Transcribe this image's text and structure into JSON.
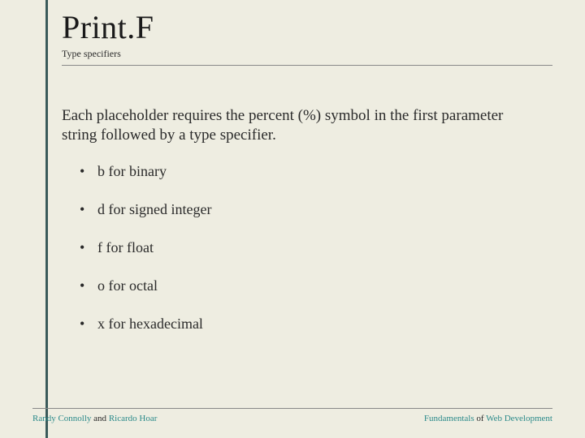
{
  "colors": {
    "background": "#eeede1",
    "accent_bar": "#3a5a5a",
    "text": "#2a2a2a",
    "rule": "#888888",
    "teal_link": "#2b8a8a"
  },
  "typography": {
    "title_fontsize": 40,
    "subtitle_fontsize": 12,
    "body_fontsize": 19,
    "bullet_fontsize": 18,
    "footer_fontsize": 11,
    "font_family": "Georgia, serif"
  },
  "title": "Print.F",
  "subtitle": "Type specifiers",
  "intro": "Each placeholder requires the percent (%) symbol in the first parameter string followed by a type specifier.",
  "bullets": [
    "b for binary",
    "d for signed integer",
    "f for float",
    "o for octal",
    "x for hexadecimal"
  ],
  "footer": {
    "left_name1": "Randy Connolly",
    "left_join": " and ",
    "left_name2": "Ricardo Hoar",
    "right_word1": "Fundamentals",
    "right_join": " of ",
    "right_word2": "Web Development"
  }
}
